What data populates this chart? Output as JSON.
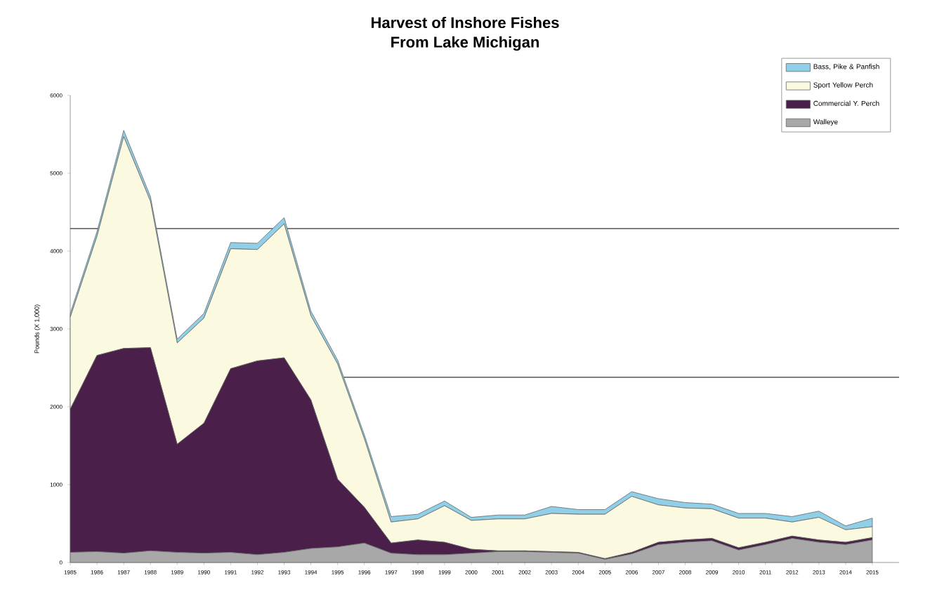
{
  "chart_data": {
    "type": "area",
    "title": "Harvest of Inshore Fishes",
    "subtitle": "From Lake Michigan",
    "ylabel": "Pounds (X 1,000)",
    "categories": [
      "1985",
      "1986",
      "1987",
      "1988",
      "1989",
      "1990",
      "1991",
      "1992",
      "1993",
      "1994",
      "1995",
      "1996",
      "1997",
      "1998",
      "1999",
      "2000",
      "2001",
      "2002",
      "2003",
      "2004",
      "2005",
      "2006",
      "2007",
      "2008",
      "2009",
      "2010",
      "2011",
      "2012",
      "2013",
      "2014",
      "2015"
    ],
    "stacked": true,
    "series": [
      {
        "name": "Walleye",
        "color": "#a8a8a8",
        "values": [
          130,
          140,
          120,
          150,
          130,
          120,
          130,
          100,
          130,
          180,
          200,
          250,
          120,
          100,
          100,
          120,
          140,
          140,
          130,
          120,
          40,
          110,
          230,
          260,
          280,
          160,
          230,
          310,
          260,
          230,
          290
        ]
      },
      {
        "name": "Commercial Y. Perch",
        "color": "#4a1f4a",
        "values": [
          1840,
          2520,
          2630,
          2610,
          1390,
          1670,
          2360,
          2490,
          2500,
          1910,
          870,
          460,
          130,
          190,
          160,
          50,
          10,
          10,
          10,
          10,
          10,
          20,
          30,
          30,
          30,
          30,
          30,
          30,
          30,
          30,
          30
        ]
      },
      {
        "name": "Sport Yellow Perch",
        "color": "#fbfae0",
        "values": [
          1180,
          1530,
          2720,
          1880,
          1300,
          1350,
          1540,
          1430,
          1720,
          1080,
          1480,
          880,
          270,
          270,
          470,
          370,
          410,
          410,
          490,
          490,
          570,
          720,
          480,
          410,
          380,
          380,
          310,
          180,
          290,
          160,
          140
        ]
      },
      {
        "name": "Bass, Pike & Panfish",
        "color": "#8fd0e8",
        "values": [
          50,
          60,
          80,
          60,
          50,
          60,
          80,
          80,
          80,
          60,
          50,
          50,
          70,
          60,
          60,
          40,
          50,
          50,
          90,
          60,
          60,
          60,
          80,
          70,
          60,
          60,
          60,
          70,
          80,
          50,
          110
        ]
      }
    ],
    "ylim": [
      0,
      6000
    ],
    "yticks": [
      0,
      1000,
      2000,
      3000,
      4000,
      5000,
      6000
    ],
    "legend": "top right",
    "ref_lines": [
      {
        "axis": "y",
        "value": 4290,
        "color": "#333333"
      },
      {
        "axis": "y",
        "value": 2380,
        "color": "#333333"
      }
    ]
  }
}
